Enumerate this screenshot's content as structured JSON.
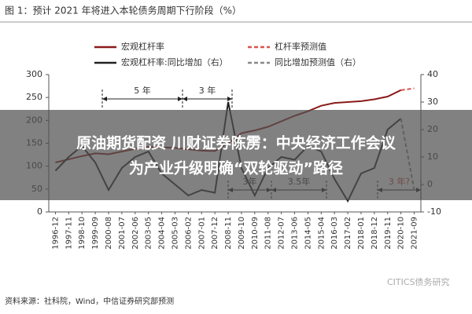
{
  "chart_data": {
    "type": "line",
    "title": "图 1：预计 2021 年将进入本轮债务周期下行阶段（%）",
    "categories": [
      "1996-12",
      "1997-11",
      "1998-10",
      "1999-09",
      "2000-08",
      "2001-07",
      "2002-06",
      "2003-05",
      "2004-04",
      "2005-03",
      "2006-02",
      "2007-01",
      "2007-12",
      "2008-11",
      "2009-10",
      "2010-09",
      "2011-08",
      "2012-07",
      "2013-06",
      "2014-05",
      "2015-04",
      "2016-03",
      "2017-02",
      "2018-01",
      "2018-12",
      "2019-11",
      "2020-10",
      "2021-09"
    ],
    "series": [
      {
        "name": "宏观杠杆率",
        "color": "#8b1a1a",
        "dashed": false,
        "values": [
          108,
          115,
          122,
          128,
          126,
          132,
          138,
          142,
          141,
          140,
          137,
          134,
          133,
          150,
          172,
          178,
          186,
          198,
          210,
          220,
          232,
          238,
          240,
          242,
          246,
          252,
          266,
          null
        ]
      },
      {
        "name": "杠杆率预测值",
        "color": "#d9534f",
        "dashed": true,
        "values": [
          null,
          null,
          null,
          null,
          null,
          null,
          null,
          null,
          null,
          null,
          null,
          null,
          null,
          null,
          null,
          null,
          null,
          null,
          null,
          null,
          null,
          null,
          null,
          null,
          null,
          null,
          266,
          270
        ]
      },
      {
        "name": "宏观杠杆率:同比增加（右）",
        "color": "#222222",
        "dashed": false,
        "axis": "y2",
        "values": [
          5,
          10,
          14,
          8,
          -2,
          6,
          10,
          12,
          4,
          0,
          -4,
          -2,
          -3,
          30,
          6,
          -4,
          6,
          10,
          9,
          14,
          12,
          2,
          -6,
          4,
          6,
          20,
          24,
          null
        ]
      },
      {
        "name": "同比增加预测值（右）",
        "color": "#888888",
        "dashed": true,
        "axis": "y2",
        "values": [
          null,
          null,
          null,
          null,
          null,
          null,
          null,
          null,
          null,
          null,
          null,
          null,
          null,
          null,
          null,
          null,
          null,
          null,
          null,
          null,
          null,
          null,
          null,
          null,
          null,
          null,
          24,
          -2
        ]
      }
    ],
    "ylim": [
      0,
      300
    ],
    "yticks": [
      0,
      50,
      100,
      150,
      200,
      250,
      300
    ],
    "y2lim": [
      -10,
      40
    ],
    "y2ticks": [
      -10,
      0,
      10,
      20,
      30,
      40
    ],
    "grid": false,
    "annotations": [
      "5 年",
      "3 年",
      "3年",
      "3.5年",
      "3 年?"
    ]
  },
  "banner": {
    "lines": [
      "原油期货配资 川财证券陈雳：中央经济工作会议",
      "为产业升级明确“双轮驱动”路径"
    ]
  },
  "source": "资料来源：社科院，Wind，中信证券研究部预测",
  "watermark": "CITICS债务研究"
}
